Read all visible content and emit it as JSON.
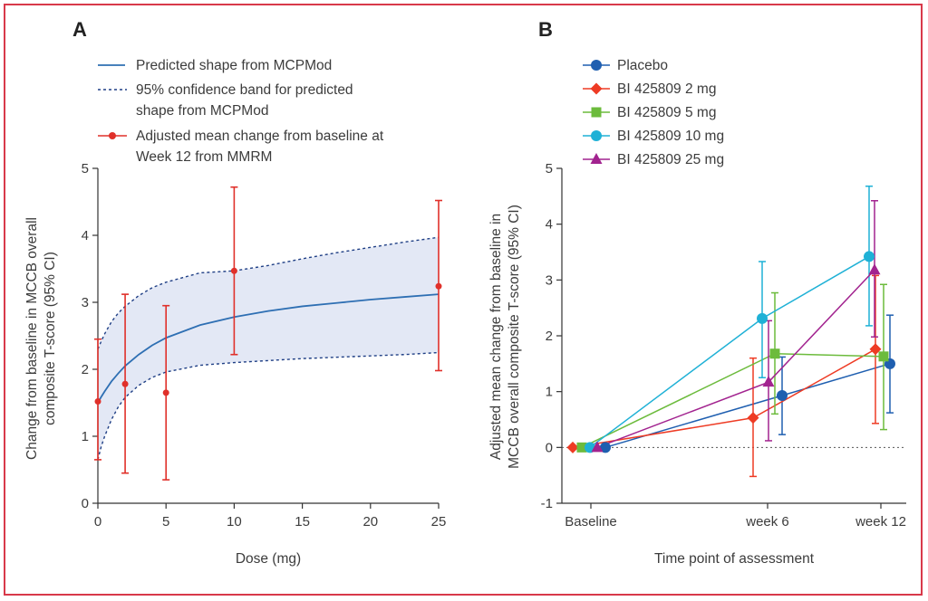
{
  "colors": {
    "frame": "#d8394a",
    "axis": "#333333",
    "predicted": "#2e6fb3",
    "band_fill": "#e3e8f5",
    "band_line": "#1f3f85",
    "mmrm": "#e0302a",
    "placebo": "#1f5fb0",
    "bi_2mg": "#ee3b24",
    "bi_5mg": "#6cbb3c",
    "bi_10mg": "#1fb1d6",
    "bi_25mg": "#a2238f"
  },
  "chart_data": [
    {
      "panel": "A",
      "type": "line",
      "xlabel": "Dose (mg)",
      "ylabel": "Change from baseline in MCCB overall composite T-score (95% CI)",
      "xlim": [
        0,
        25
      ],
      "ylim": [
        0,
        5
      ],
      "xticks": [
        0,
        5,
        10,
        15,
        20,
        25
      ],
      "yticks": [
        0,
        1,
        2,
        3,
        4,
        5
      ],
      "grid": false,
      "legend": [
        {
          "key": "predicted",
          "label_lines": [
            "Predicted shape from MCPMod"
          ],
          "style": "solid-line"
        },
        {
          "key": "band",
          "label_lines": [
            "95% confidence band for predicted",
            "shape from MCPMod"
          ],
          "style": "dashed-line"
        },
        {
          "key": "mmrm",
          "label_lines": [
            "Adjusted mean change from baseline at",
            "Week 12 from MMRM"
          ],
          "style": "point-errorbar"
        }
      ],
      "predicted_curve": {
        "x": [
          0,
          0.25,
          0.5,
          1,
          1.5,
          2,
          3,
          4,
          5,
          7.5,
          10,
          12.5,
          15,
          17.5,
          20,
          22.5,
          25
        ],
        "y": [
          1.5,
          1.59,
          1.67,
          1.82,
          1.94,
          2.05,
          2.22,
          2.36,
          2.47,
          2.66,
          2.78,
          2.87,
          2.94,
          2.99,
          3.04,
          3.08,
          3.12
        ]
      },
      "band_upper": {
        "x": [
          0,
          0.25,
          0.5,
          1,
          1.5,
          2,
          3,
          4,
          5,
          7.5,
          10,
          12.5,
          15,
          17.5,
          20,
          22.5,
          25
        ],
        "y": [
          2.3,
          2.42,
          2.53,
          2.71,
          2.84,
          2.94,
          3.1,
          3.22,
          3.3,
          3.44,
          3.47,
          3.55,
          3.65,
          3.74,
          3.82,
          3.9,
          3.97
        ]
      },
      "band_lower": {
        "x": [
          0,
          0.25,
          0.5,
          1,
          1.5,
          2,
          3,
          4,
          5,
          7.5,
          10,
          12.5,
          15,
          17.5,
          20,
          22.5,
          25
        ],
        "y": [
          0.65,
          0.85,
          1.0,
          1.25,
          1.44,
          1.58,
          1.76,
          1.88,
          1.96,
          2.06,
          2.1,
          2.13,
          2.16,
          2.18,
          2.2,
          2.22,
          2.25
        ]
      },
      "mmrm_points": [
        {
          "x": 0,
          "y": 1.52,
          "lo": 0.65,
          "hi": 2.45
        },
        {
          "x": 2,
          "y": 1.78,
          "lo": 0.45,
          "hi": 3.12
        },
        {
          "x": 5,
          "y": 1.65,
          "lo": 0.35,
          "hi": 2.95
        },
        {
          "x": 10,
          "y": 3.47,
          "lo": 2.22,
          "hi": 4.72
        },
        {
          "x": 25,
          "y": 3.24,
          "lo": 1.98,
          "hi": 4.52
        }
      ]
    },
    {
      "panel": "B",
      "type": "line",
      "xlabel": "Time point of assessment",
      "ylabel": "Adjusted mean change from baseline in MCCB overall composite T-score (95% CI)",
      "categories": [
        "Baseline",
        "week 6",
        "week 12"
      ],
      "ylim": [
        -1,
        5
      ],
      "yticks": [
        -1,
        0,
        1,
        2,
        3,
        4,
        5
      ],
      "grid": false,
      "reference_line": 0,
      "series": [
        {
          "name": "Placebo",
          "color_key": "placebo",
          "marker": "circle",
          "values": [
            0,
            0.93,
            1.5
          ],
          "lo": [
            0,
            0.23,
            0.62
          ],
          "hi": [
            0,
            1.62,
            2.37
          ]
        },
        {
          "name": "BI 425809 2 mg",
          "color_key": "bi_2mg",
          "marker": "diamond",
          "values": [
            0,
            0.53,
            1.76
          ],
          "lo": [
            0,
            -0.52,
            0.43
          ],
          "hi": [
            0,
            1.6,
            3.08
          ]
        },
        {
          "name": "BI 425809 5 mg",
          "color_key": "bi_5mg",
          "marker": "square",
          "values": [
            0,
            1.68,
            1.63
          ],
          "lo": [
            0,
            0.6,
            0.32
          ],
          "hi": [
            0,
            2.77,
            2.92
          ]
        },
        {
          "name": "BI 425809 10 mg",
          "color_key": "bi_10mg",
          "marker": "circle",
          "values": [
            0,
            2.31,
            3.42
          ],
          "lo": [
            0,
            1.25,
            2.18
          ],
          "hi": [
            0,
            3.33,
            4.68
          ]
        },
        {
          "name": "BI 425809 25 mg",
          "color_key": "bi_25mg",
          "marker": "triangle",
          "values": [
            0,
            1.17,
            3.18
          ],
          "lo": [
            0,
            0.12,
            1.98
          ],
          "hi": [
            0,
            2.27,
            4.42
          ]
        }
      ]
    }
  ],
  "panels": {
    "a": {
      "letter": "A",
      "xlabel": "Dose (mg)",
      "ylabel_lines": [
        "Change from baseline in MCCB overall",
        "composite T-score (95% CI)"
      ],
      "legend": [
        {
          "line1": "Predicted shape from MCPMod",
          "line2": ""
        },
        {
          "line1": "95% confidence band for predicted",
          "line2": "shape from MCPMod"
        },
        {
          "line1": "Adjusted mean change from baseline at",
          "line2": "Week 12 from MMRM"
        }
      ]
    },
    "b": {
      "letter": "B",
      "xlabel": "Time point of assessment",
      "ylabel_lines": [
        "Adjusted mean change from baseline in",
        "MCCB overall composite T-score (95% CI)"
      ],
      "legend": [
        "Placebo",
        "BI 425809 2 mg",
        "BI 425809 5 mg",
        "BI 425809 10 mg",
        "BI 425809 25 mg"
      ]
    }
  }
}
